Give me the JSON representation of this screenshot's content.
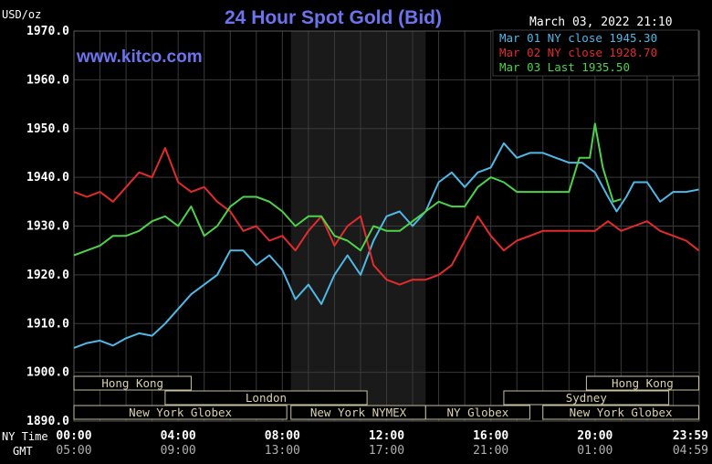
{
  "header": {
    "unit_label": "USD/oz",
    "title": "24 Hour Spot Gold (Bid)",
    "timestamp": "March 03, 2022 21:10",
    "watermark": "www.kitco.com"
  },
  "chart_data": {
    "type": "line",
    "title": "24 Hour Spot Gold (Bid)",
    "ylabel": "USD/oz",
    "ylim": [
      1890,
      1970
    ],
    "yticks": [
      "1970.0",
      "1960.0",
      "1950.0",
      "1940.0",
      "1930.0",
      "1920.0",
      "1910.0",
      "1900.0",
      "1890.0"
    ],
    "xlim": [
      0,
      24
    ],
    "xticks": [
      {
        "hour": 0,
        "ny": "00:00",
        "gmt": "05:00"
      },
      {
        "hour": 4,
        "ny": "04:00",
        "gmt": "09:00"
      },
      {
        "hour": 8,
        "ny": "08:00",
        "gmt": "13:00"
      },
      {
        "hour": 12,
        "ny": "12:00",
        "gmt": "17:00"
      },
      {
        "hour": 16,
        "ny": "16:00",
        "gmt": "21:00"
      },
      {
        "hour": 20,
        "ny": "20:00",
        "gmt": "01:00"
      },
      {
        "hour": 23.983,
        "ny": "23:59",
        "gmt": "04:59"
      }
    ],
    "xaxis_row_labels": {
      "ny": "NY Time",
      "gmt": "GMT"
    },
    "grid": true,
    "legend_position": "top-right",
    "shaded_range": [
      8.33,
      13.5
    ],
    "series": [
      {
        "name": "Mar 01 NY close 1945.30",
        "color": "#4fb8e6",
        "points": [
          [
            0,
            1905
          ],
          [
            0.5,
            1906
          ],
          [
            1,
            1906.5
          ],
          [
            1.5,
            1905.5
          ],
          [
            2,
            1907
          ],
          [
            2.5,
            1908
          ],
          [
            3,
            1907.5
          ],
          [
            3.5,
            1910
          ],
          [
            4,
            1913
          ],
          [
            4.5,
            1916
          ],
          [
            5,
            1918
          ],
          [
            5.5,
            1920
          ],
          [
            6,
            1925
          ],
          [
            6.5,
            1925
          ],
          [
            7,
            1922
          ],
          [
            7.5,
            1924
          ],
          [
            8,
            1921
          ],
          [
            8.5,
            1915
          ],
          [
            9,
            1918
          ],
          [
            9.5,
            1914
          ],
          [
            10,
            1920
          ],
          [
            10.5,
            1924
          ],
          [
            11,
            1920
          ],
          [
            11.5,
            1927
          ],
          [
            12,
            1932
          ],
          [
            12.5,
            1933
          ],
          [
            13,
            1930
          ],
          [
            13.5,
            1933
          ],
          [
            14,
            1939
          ],
          [
            14.5,
            1941
          ],
          [
            15,
            1938
          ],
          [
            15.5,
            1941
          ],
          [
            16,
            1942
          ],
          [
            16.5,
            1947
          ],
          [
            17,
            1944
          ],
          [
            17.5,
            1945
          ],
          [
            18,
            1945
          ],
          [
            18.5,
            1944
          ],
          [
            19,
            1943
          ],
          [
            19.5,
            1943
          ],
          [
            20,
            1941
          ],
          [
            20.5,
            1936
          ],
          [
            20.83,
            1933
          ],
          [
            21.2,
            1936
          ],
          [
            21.5,
            1939
          ],
          [
            22,
            1939
          ],
          [
            22.5,
            1935
          ],
          [
            23,
            1937
          ],
          [
            23.5,
            1937
          ],
          [
            23.98,
            1937.5
          ]
        ]
      },
      {
        "name": "Mar 02 NY close 1928.70",
        "color": "#e32b2b",
        "points": [
          [
            0,
            1937
          ],
          [
            0.5,
            1936
          ],
          [
            1,
            1937
          ],
          [
            1.5,
            1935
          ],
          [
            2,
            1938
          ],
          [
            2.5,
            1941
          ],
          [
            3,
            1940
          ],
          [
            3.5,
            1946
          ],
          [
            4,
            1939
          ],
          [
            4.5,
            1937
          ],
          [
            5,
            1938
          ],
          [
            5.5,
            1935
          ],
          [
            6,
            1933
          ],
          [
            6.5,
            1929
          ],
          [
            7,
            1930
          ],
          [
            7.5,
            1927
          ],
          [
            8,
            1928
          ],
          [
            8.5,
            1925
          ],
          [
            9,
            1929
          ],
          [
            9.5,
            1932
          ],
          [
            10,
            1926
          ],
          [
            10.5,
            1930
          ],
          [
            11,
            1932
          ],
          [
            11.5,
            1922
          ],
          [
            12,
            1919
          ],
          [
            12.5,
            1918
          ],
          [
            13,
            1919
          ],
          [
            13.5,
            1919
          ],
          [
            14,
            1920
          ],
          [
            14.5,
            1922
          ],
          [
            15,
            1927
          ],
          [
            15.5,
            1932
          ],
          [
            16,
            1928
          ],
          [
            16.5,
            1925
          ],
          [
            17,
            1927
          ],
          [
            17.5,
            1928
          ],
          [
            18,
            1929
          ],
          [
            18.5,
            1929
          ],
          [
            19,
            1929
          ],
          [
            19.5,
            1929
          ],
          [
            20,
            1929
          ],
          [
            20.5,
            1931
          ],
          [
            21,
            1929
          ],
          [
            21.5,
            1930
          ],
          [
            22,
            1931
          ],
          [
            22.5,
            1929
          ],
          [
            23,
            1928
          ],
          [
            23.5,
            1927
          ],
          [
            23.98,
            1925
          ]
        ]
      },
      {
        "name": "Mar 03 Last 1935.50",
        "color": "#4ed24b",
        "points": [
          [
            0,
            1924
          ],
          [
            0.5,
            1925
          ],
          [
            1,
            1926
          ],
          [
            1.5,
            1928
          ],
          [
            2,
            1928
          ],
          [
            2.5,
            1929
          ],
          [
            3,
            1931
          ],
          [
            3.5,
            1932
          ],
          [
            4,
            1930
          ],
          [
            4.5,
            1934
          ],
          [
            5,
            1928
          ],
          [
            5.5,
            1930
          ],
          [
            6,
            1934
          ],
          [
            6.5,
            1936
          ],
          [
            7,
            1936
          ],
          [
            7.5,
            1935
          ],
          [
            8,
            1933
          ],
          [
            8.5,
            1930
          ],
          [
            9,
            1932
          ],
          [
            9.5,
            1932
          ],
          [
            10,
            1928
          ],
          [
            10.5,
            1927
          ],
          [
            11,
            1925
          ],
          [
            11.5,
            1930
          ],
          [
            12,
            1929
          ],
          [
            12.5,
            1929
          ],
          [
            13,
            1931
          ],
          [
            13.5,
            1933
          ],
          [
            14,
            1935
          ],
          [
            14.5,
            1934
          ],
          [
            15,
            1934
          ],
          [
            15.5,
            1938
          ],
          [
            16,
            1940
          ],
          [
            16.5,
            1939
          ],
          [
            17,
            1937
          ],
          [
            17.5,
            1937
          ],
          [
            18,
            1937
          ],
          [
            18.5,
            1937
          ],
          [
            19,
            1937
          ],
          [
            19.4,
            1944
          ],
          [
            19.8,
            1944
          ],
          [
            20,
            1951
          ],
          [
            20.3,
            1942
          ],
          [
            20.7,
            1935
          ],
          [
            21,
            1935.5
          ]
        ]
      }
    ]
  },
  "sessions": [
    {
      "label": "Hong Kong",
      "start": 0,
      "end": 4.5,
      "row": 0
    },
    {
      "label": "Hong Kong",
      "start": 19.67,
      "end": 23.98,
      "row": 0
    },
    {
      "label": "London",
      "start": 3.5,
      "end": 11.25,
      "row": 1
    },
    {
      "label": "Sydney",
      "start": 16.5,
      "end": 22.83,
      "row": 1
    },
    {
      "label": "New York Globex",
      "start": 0,
      "end": 8.17,
      "row": 2
    },
    {
      "label": "New York NYMEX",
      "start": 8.33,
      "end": 13.5,
      "row": 2
    },
    {
      "label": "NY Globex",
      "start": 13.5,
      "end": 17.5,
      "row": 2
    },
    {
      "label": "New York Globex",
      "start": 18,
      "end": 23.98,
      "row": 2
    }
  ]
}
